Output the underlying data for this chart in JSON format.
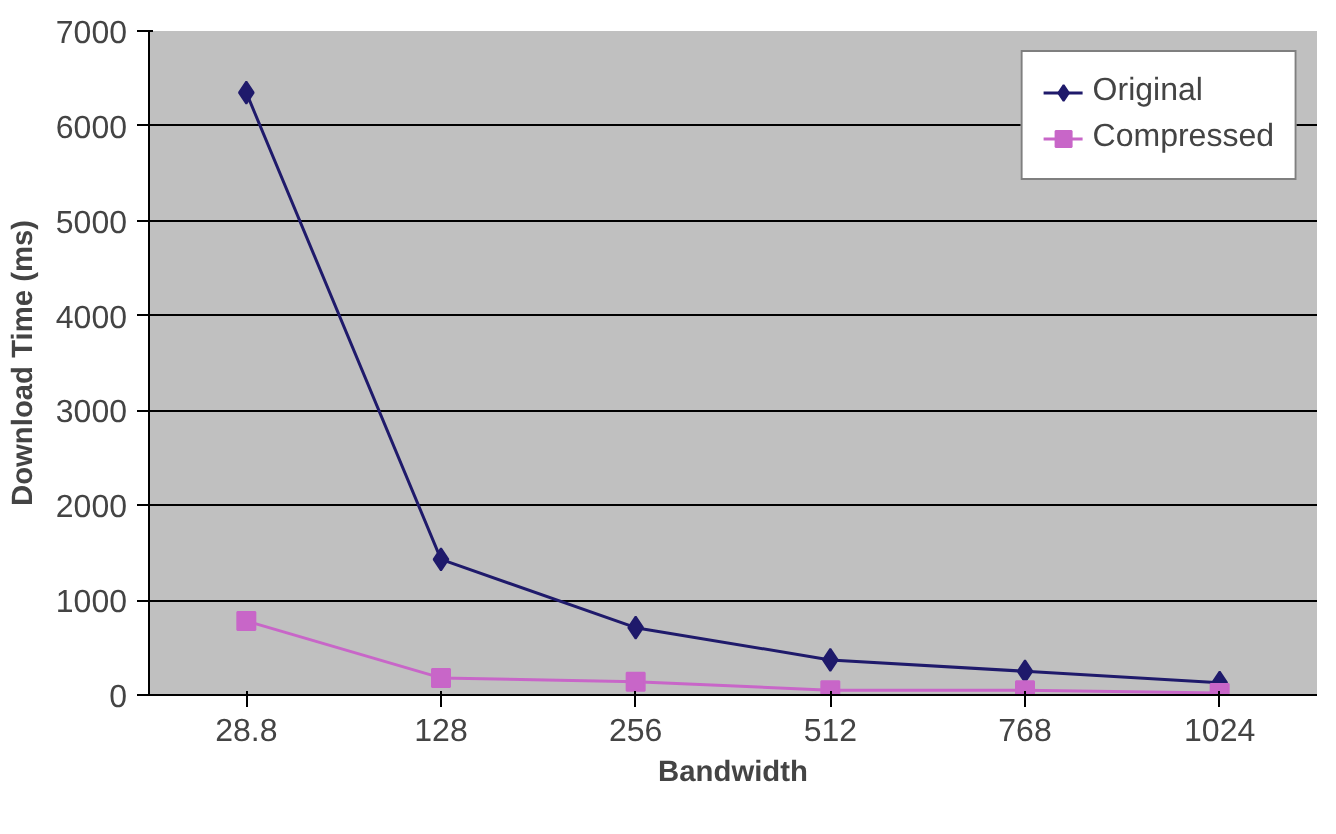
{
  "chart_data": {
    "type": "line",
    "xlabel": "Bandwidth",
    "ylabel": "Download Time (ms)",
    "categories": [
      "28.8",
      "128",
      "256",
      "512",
      "768",
      "1024"
    ],
    "series": [
      {
        "name": "Original",
        "color": "#1f1a6b",
        "marker": "diamond",
        "values": [
          6350,
          1430,
          710,
          370,
          250,
          130
        ]
      },
      {
        "name": "Compressed",
        "color": "#c866c8",
        "marker": "square",
        "values": [
          780,
          180,
          140,
          50,
          50,
          20
        ]
      }
    ],
    "ylim": [
      0,
      7000
    ],
    "yticks": [
      0,
      1000,
      2000,
      3000,
      4000,
      5000,
      6000,
      7000
    ],
    "grid": "y",
    "legend": "top right"
  }
}
